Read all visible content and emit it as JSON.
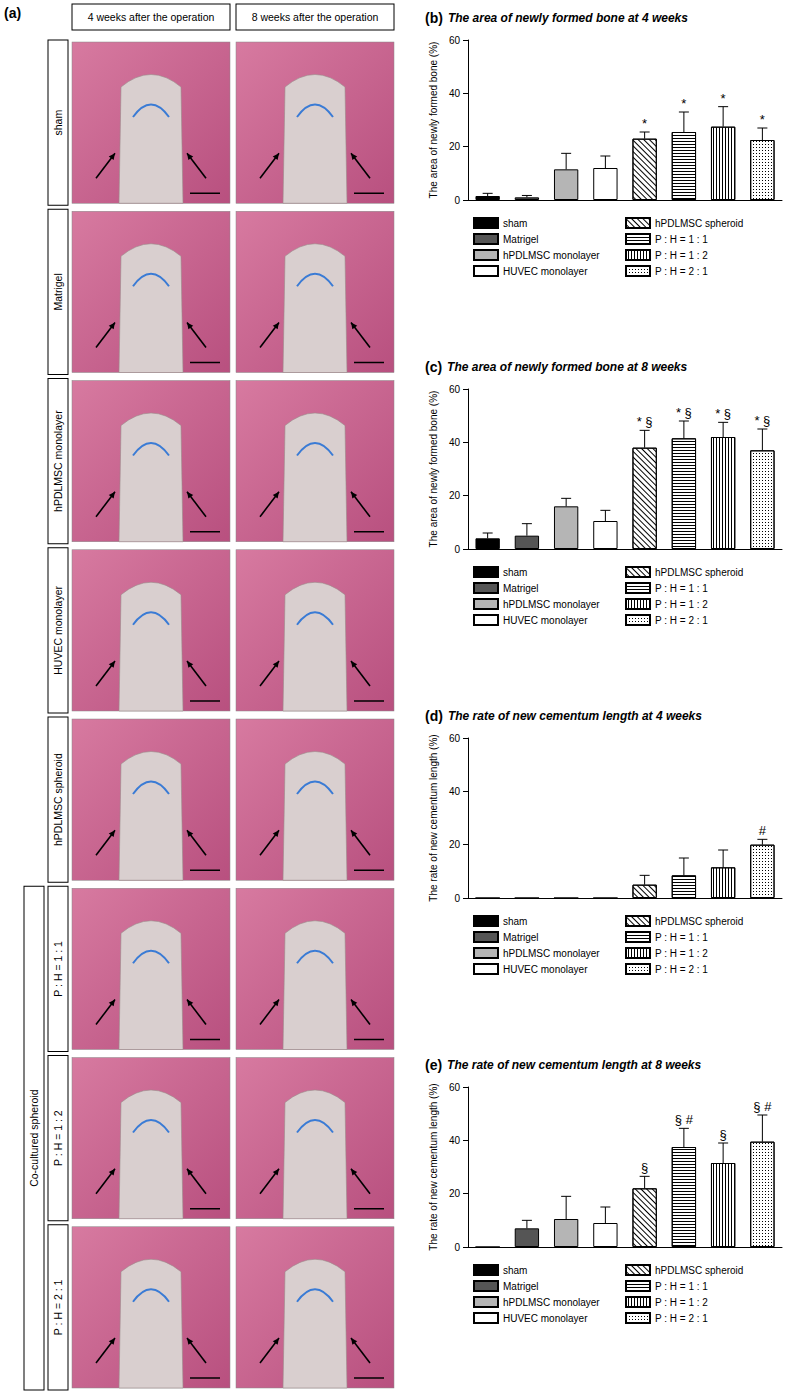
{
  "panel_a": {
    "panel": "(a)",
    "columns": [
      "4 weeks after the operation",
      "8 weeks after the operation"
    ],
    "rows": [
      "sham",
      "Matrigel",
      "hPDLMSC monolayer",
      "HUVEC monolayer",
      "hPDLMSC spheroid",
      "P : H = 1 : 1",
      "P : H = 1 : 2",
      "P : H = 2 : 1"
    ],
    "group_label": "Co-cultured spheroid",
    "group_start": 5
  },
  "chart_data": [
    {
      "type": "bar",
      "panel": "(b)",
      "title": "The area of newly formed bone at 4 weeks",
      "y_label": "The area of newly formed bone (%)",
      "categories": [
        "sham",
        "Matrigel",
        "hPDLMSC monolayer",
        "HUVEC monolayer",
        "hPDLMSC spheroid",
        "P : H = 1 : 1",
        "P : H = 1 : 2",
        "P : H = 2 : 1"
      ],
      "values": [
        1.5,
        1,
        11.5,
        12,
        23,
        25.5,
        27.5,
        22.5
      ],
      "errors": [
        1,
        0.7,
        6,
        4.5,
        2.5,
        7.5,
        7.5,
        4.5
      ],
      "marks": [
        null,
        null,
        null,
        null,
        "*",
        "*",
        "*",
        "*"
      ],
      "colors": [
        "#000000",
        "#555555",
        "#b5b5b5",
        "#ffffff",
        "#ffffff",
        "#ffffff",
        "#ffffff",
        "#ffffff"
      ],
      "ylim": [
        0,
        60
      ],
      "yticks": [
        0,
        20,
        40,
        60
      ],
      "grid": false,
      "tick_labels": "y"
    },
    {
      "type": "bar",
      "panel": "(c)",
      "title": "The area of newly formed bone at 8 weeks",
      "y_label": "The area of newly formed bone (%)",
      "categories": [
        "sham",
        "Matrigel",
        "hPDLMSC monolayer",
        "HUVEC monolayer",
        "hPDLMSC spheroid",
        "P : H = 1 : 1",
        "P : H = 1 : 2",
        "P : H = 2 : 1"
      ],
      "values": [
        4,
        5,
        16,
        10.5,
        38,
        41.5,
        42,
        37
      ],
      "errors": [
        2,
        4.5,
        3,
        4,
        6.5,
        6.5,
        5.5,
        8
      ],
      "marks": [
        null,
        null,
        null,
        null,
        "* §",
        "* §",
        "* §",
        "* §"
      ],
      "colors": [
        "#000000",
        "#555555",
        "#b5b5b5",
        "#ffffff",
        "#ffffff",
        "#ffffff",
        "#ffffff",
        "#ffffff"
      ],
      "ylim": [
        0,
        60
      ],
      "yticks": [
        0,
        20,
        40,
        60
      ],
      "grid": false,
      "tick_labels": "y"
    },
    {
      "type": "bar",
      "panel": "(d)",
      "title": "The rate of new cementum length at 4 weeks",
      "y_label": "The rate of new cementum length (%)",
      "categories": [
        "sham",
        "Matrigel",
        "hPDLMSC monolayer",
        "HUVEC monolayer",
        "hPDLMSC spheroid",
        "P : H = 1 : 1",
        "P : H = 1 : 2",
        "P : H = 2 : 1"
      ],
      "values": [
        0,
        0,
        0,
        0,
        5,
        8.5,
        11.5,
        20
      ],
      "errors": [
        0,
        0,
        0,
        0,
        3.5,
        6.5,
        6.5,
        2
      ],
      "marks": [
        null,
        null,
        null,
        null,
        null,
        null,
        null,
        "#"
      ],
      "colors": [
        "#000000",
        "#555555",
        "#b5b5b5",
        "#ffffff",
        "#ffffff",
        "#ffffff",
        "#ffffff",
        "#ffffff"
      ],
      "ylim": [
        0,
        60
      ],
      "yticks": [
        0,
        20,
        40,
        60
      ],
      "grid": false,
      "tick_labels": "y"
    },
    {
      "type": "bar",
      "panel": "(e)",
      "title": "The rate of new cementum length at 8 weeks",
      "y_label": "The rate of new cementum length (%)",
      "categories": [
        "sham",
        "Matrigel",
        "hPDLMSC monolayer",
        "HUVEC monolayer",
        "hPDLMSC spheroid",
        "P : H = 1 : 1",
        "P : H = 1 : 2",
        "P : H = 2 : 1"
      ],
      "values": [
        0,
        7,
        10.5,
        9,
        22,
        37.5,
        31.5,
        39.5
      ],
      "errors": [
        0,
        3,
        8.5,
        6,
        4.5,
        7,
        7.5,
        10
      ],
      "marks": [
        null,
        null,
        null,
        null,
        "§",
        "§ #",
        "§",
        "§ #"
      ],
      "colors": [
        "#000000",
        "#555555",
        "#b5b5b5",
        "#ffffff",
        "#ffffff",
        "#ffffff",
        "#ffffff",
        "#ffffff"
      ],
      "ylim": [
        0,
        60
      ],
      "yticks": [
        0,
        20,
        40,
        60
      ],
      "grid": false,
      "tick_labels": "y"
    }
  ]
}
